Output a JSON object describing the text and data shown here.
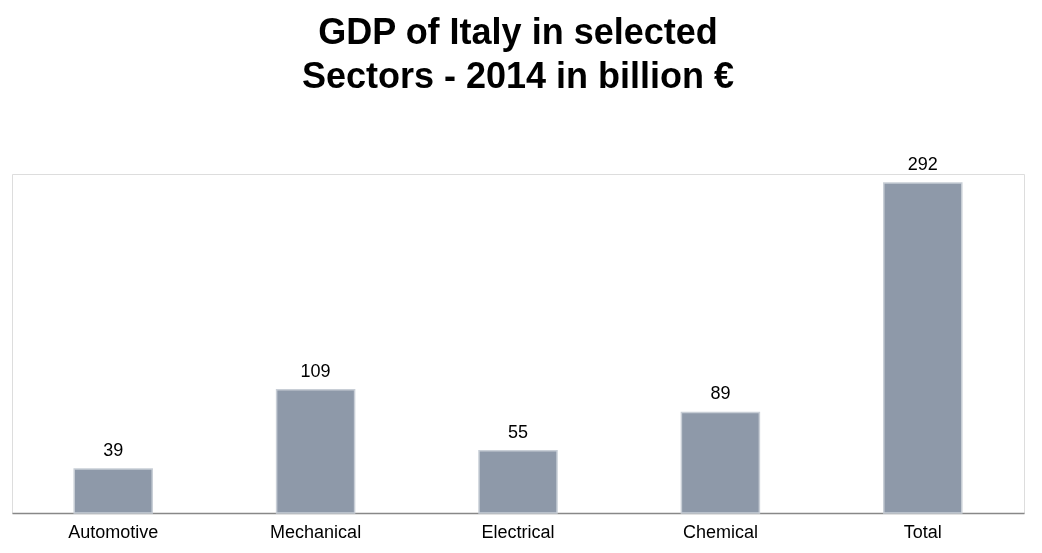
{
  "chart_data": {
    "type": "bar",
    "title": "GDP of Italy in selected Sectors - 2014 in billion €",
    "categories": [
      "Automotive",
      "Mechanical",
      "Electrical",
      "Chemical",
      "Total"
    ],
    "values": [
      39,
      109,
      55,
      89,
      292
    ],
    "color": "#8e99a9",
    "data_labels": true
  }
}
